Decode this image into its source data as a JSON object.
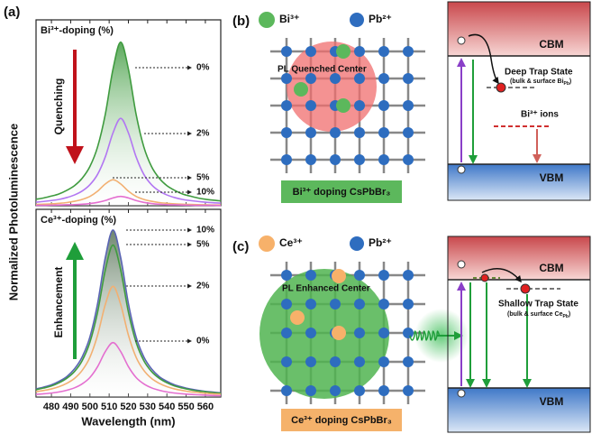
{
  "panel_labels": [
    "(a)",
    "(b)",
    "(c)"
  ],
  "ylabel": "Normalized Photoluminescence",
  "chart_data": [
    {
      "type": "line",
      "subtitle": "Bi³⁺-doping (%)",
      "annotation": "Quenching",
      "annotation_color": "#c0121b",
      "x": [
        472,
        476,
        480,
        484,
        488,
        492,
        496,
        500,
        504,
        508,
        512,
        516,
        520,
        524,
        528,
        532,
        536,
        540,
        544,
        548,
        552,
        556,
        560,
        564,
        568
      ],
      "xlim": [
        472,
        568
      ],
      "xticks": [
        480,
        490,
        500,
        510,
        520,
        530,
        540,
        550,
        560
      ],
      "ylim": [
        0,
        1
      ],
      "series": [
        {
          "name": "0%",
          "color": "#3f9b3f",
          "values": [
            0.035,
            0.042,
            0.052,
            0.064,
            0.083,
            0.108,
            0.148,
            0.211,
            0.317,
            0.492,
            0.735,
            0.88,
            0.735,
            0.492,
            0.317,
            0.211,
            0.148,
            0.108,
            0.083,
            0.064,
            0.052,
            0.042,
            0.035,
            0.03,
            0.026
          ]
        },
        {
          "name": "2%",
          "color": "#b277f2",
          "values": [
            0.019,
            0.023,
            0.028,
            0.034,
            0.044,
            0.058,
            0.079,
            0.113,
            0.169,
            0.263,
            0.392,
            0.47,
            0.392,
            0.263,
            0.169,
            0.113,
            0.079,
            0.058,
            0.044,
            0.034,
            0.028,
            0.023,
            0.019,
            0.016,
            0.014
          ]
        },
        {
          "name": "5%",
          "color": "#f2b072",
          "values": [
            0.007,
            0.008,
            0.01,
            0.013,
            0.017,
            0.024,
            0.034,
            0.05,
            0.078,
            0.117,
            0.14,
            0.117,
            0.078,
            0.05,
            0.034,
            0.024,
            0.017,
            0.013,
            0.01,
            0.008,
            0.007,
            0.006,
            0.005,
            0.004,
            0.004
          ]
        },
        {
          "name": "10%",
          "color": "#e46fd0",
          "values": [
            0.002,
            0.002,
            0.003,
            0.004,
            0.005,
            0.006,
            0.008,
            0.012,
            0.018,
            0.028,
            0.042,
            0.05,
            0.042,
            0.028,
            0.018,
            0.012,
            0.008,
            0.006,
            0.005,
            0.004,
            0.003,
            0.002,
            0.002,
            0.002,
            0.001
          ]
        }
      ]
    },
    {
      "type": "line",
      "subtitle": "Ce³⁺-doping (%)",
      "annotation": "Enhancement",
      "annotation_color": "#1f9e3a",
      "xlabel": "Wavelength (nm)",
      "x": [
        472,
        476,
        480,
        484,
        488,
        492,
        496,
        500,
        504,
        508,
        512,
        516,
        520,
        524,
        528,
        532,
        536,
        540,
        544,
        548,
        552,
        556,
        560,
        564,
        568
      ],
      "xlim": [
        472,
        568
      ],
      "xticks": [
        480,
        490,
        500,
        510,
        520,
        530,
        540,
        550,
        560
      ],
      "ylim": [
        0,
        1
      ],
      "series": [
        {
          "name": "10%",
          "color": "#5a64b4",
          "values": [
            0.043,
            0.053,
            0.065,
            0.084,
            0.109,
            0.15,
            0.214,
            0.32,
            0.498,
            0.743,
            0.89,
            0.743,
            0.498,
            0.32,
            0.214,
            0.15,
            0.109,
            0.084,
            0.065,
            0.053,
            0.043,
            0.036,
            0.03,
            0.026,
            0.022
          ]
        },
        {
          "name": "5%",
          "color": "#3f9b3f",
          "values": [
            0.039,
            0.048,
            0.059,
            0.076,
            0.1,
            0.136,
            0.194,
            0.292,
            0.453,
            0.676,
            0.81,
            0.676,
            0.453,
            0.292,
            0.194,
            0.136,
            0.1,
            0.076,
            0.059,
            0.048,
            0.039,
            0.032,
            0.028,
            0.023,
            0.02
          ]
        },
        {
          "name": "2%",
          "color": "#f2b072",
          "values": [
            0.028,
            0.035,
            0.043,
            0.055,
            0.073,
            0.099,
            0.142,
            0.212,
            0.33,
            0.493,
            0.59,
            0.493,
            0.33,
            0.212,
            0.142,
            0.099,
            0.073,
            0.055,
            0.043,
            0.035,
            0.028,
            0.024,
            0.02,
            0.017,
            0.015
          ]
        },
        {
          "name": "0%",
          "color": "#e46fd0",
          "values": [
            0.014,
            0.017,
            0.021,
            0.027,
            0.036,
            0.049,
            0.07,
            0.104,
            0.162,
            0.242,
            0.29,
            0.242,
            0.162,
            0.104,
            0.07,
            0.049,
            0.036,
            0.027,
            0.021,
            0.017,
            0.014,
            0.012,
            0.01,
            0.008,
            0.007
          ]
        }
      ]
    }
  ],
  "panel_b": {
    "legend": [
      "Bi³⁺",
      "Pb²⁺"
    ],
    "center_label": "PL Quenched Center",
    "caption": "Bi³⁺ doping CsPbBr₃",
    "band": {
      "cbm": "CBM",
      "vbm": "VBM",
      "trap": "Deep Trap State",
      "trap_note": [
        "(bulk & surface Bi",
        "Pb",
        ")"
      ],
      "ions": "Bi³⁺ ions"
    }
  },
  "panel_c": {
    "legend": [
      "Ce³⁺",
      "Pb²⁺"
    ],
    "center_label": "PL Enhanced Center",
    "caption": "Ce³⁺ doping CsPbBr₃",
    "band": {
      "cbm": "CBM",
      "vbm": "VBM",
      "trap": "Shallow Trap State",
      "trap_note": [
        "(bulk & surface Ce",
        "Pb",
        ")"
      ]
    }
  }
}
